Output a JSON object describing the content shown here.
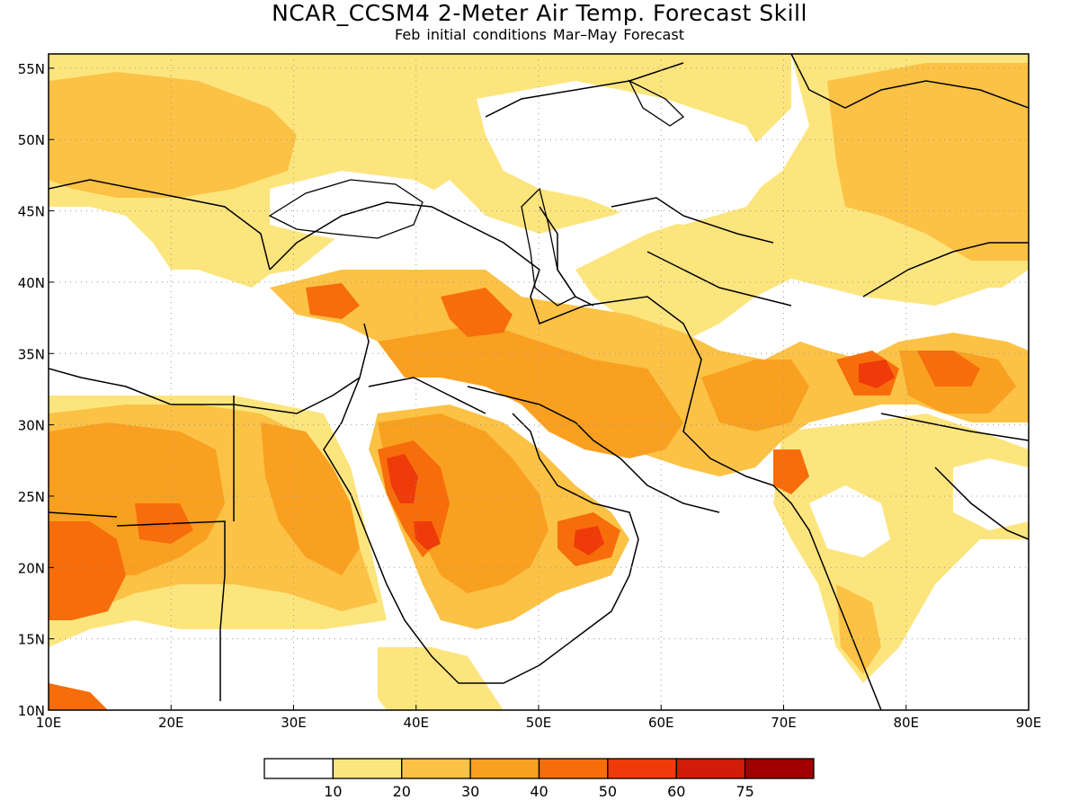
{
  "title": "NCAR_CCSM4 2-Meter Air Temp. Forecast Skill",
  "subtitle": "Feb initial conditions  Mar–May Forecast",
  "map": {
    "lon_range": [
      10,
      90
    ],
    "lat_range": [
      10,
      56
    ],
    "lon_ticks": [
      "10E",
      "20E",
      "30E",
      "40E",
      "50E",
      "60E",
      "70E",
      "80E",
      "90E"
    ],
    "lat_ticks": [
      "10N",
      "15N",
      "20N",
      "25N",
      "30N",
      "35N",
      "40N",
      "45N",
      "50N",
      "55N"
    ],
    "grid": "dotted"
  },
  "legend": {
    "colors": [
      "#ffffff",
      "#fde57e",
      "#fbc245",
      "#f9a020",
      "#f76d0b",
      "#ef3a0a",
      "#d01c08",
      "#a00000"
    ],
    "labels": [
      "10",
      "20",
      "30",
      "40",
      "50",
      "60",
      "75"
    ]
  }
}
